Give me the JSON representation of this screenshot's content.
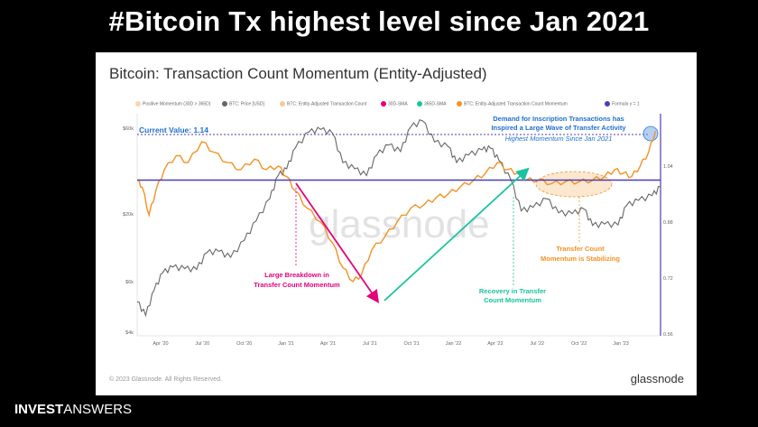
{
  "headline": "#Bitcoin Tx highest level since Jan 2021",
  "card_title": "Bitcoin: Transaction Count Momentum (Entity-Adjusted)",
  "legend": [
    {
      "label": "Positive Momentum (30D > 365D)",
      "color": "#f3d9b1"
    },
    {
      "label": "BTC: Price [USD]",
      "color": "#666666"
    },
    {
      "label": "BTC: Entity-Adjusted Transaction Count",
      "color": "#f6c99a"
    },
    {
      "label": "30D-SMA",
      "color": "#e3007b"
    },
    {
      "label": "365D-SMA",
      "color": "#19c3a0"
    },
    {
      "label": "BTC: Entity-Adjusted Transaction Count Momentum",
      "color": "#f39224"
    },
    {
      "label": "Formula y = 1",
      "color": "#4b3fb5"
    }
  ],
  "annotations": {
    "current_value": "Current Value: 1.14",
    "demand_line1": "Demand for Inscription Transactions has",
    "demand_line2": "Inspired a Large Wave of Transfer Activity",
    "demand_line3": "Highest Momentum Since Jan 2021",
    "breakdown_line1": "Large Breakdown in",
    "breakdown_line2": "Transfer Count Momentum",
    "recovery_line1": "Recovery in Transfer",
    "recovery_line2": "Count Momentum",
    "stabilizing_line1": "Transfer Count",
    "stabilizing_line2": "Momentum is Stabilizing"
  },
  "watermark": "glassnode",
  "copyright": "© 2023 Glassnode. All Rights Reserved.",
  "brand": "glassnode",
  "footer_bold": "INVEST",
  "footer_light": "ANSWERS",
  "colors": {
    "price": "#666666",
    "momentum": "#f39224",
    "baseline": "#4b3fb5",
    "breakdown": "#e3007b",
    "recovery": "#19c3a0",
    "demand_text": "#1f6fd0",
    "stabilizing_text": "#f39224"
  },
  "chart_data": {
    "type": "line",
    "title": "Bitcoin: Transaction Count Momentum (Entity-Adjusted)",
    "x_ticks": [
      "Apr '20",
      "Jul '20",
      "Oct '20",
      "Jan '21",
      "Apr '21",
      "Jul '21",
      "Oct '21",
      "Jan '22",
      "Apr '22",
      "Jul '22",
      "Oct '22",
      "Jan '23"
    ],
    "y_left_ticks": [
      "$60k",
      "$20k",
      "$6k",
      "$4k"
    ],
    "y_left_scale": "log",
    "y_right_ticks": [
      "1.04",
      "0.88",
      "0.72",
      "0.56"
    ],
    "y_right_range": [
      0.56,
      1.2
    ],
    "x_range": [
      2020.17,
      2023.25
    ],
    "series": [
      {
        "name": "BTC: Price [USD]",
        "axis": "left",
        "points": [
          [
            2020.17,
            6000
          ],
          [
            2020.22,
            5000
          ],
          [
            2020.27,
            7000
          ],
          [
            2020.32,
            8800
          ],
          [
            2020.38,
            9500
          ],
          [
            2020.45,
            9300
          ],
          [
            2020.52,
            9200
          ],
          [
            2020.58,
            11500
          ],
          [
            2020.65,
            11700
          ],
          [
            2020.72,
            10800
          ],
          [
            2020.8,
            13500
          ],
          [
            2020.87,
            17500
          ],
          [
            2020.95,
            23500
          ],
          [
            2021.0,
            32000
          ],
          [
            2021.05,
            35000
          ],
          [
            2021.1,
            46000
          ],
          [
            2021.18,
            57000
          ],
          [
            2021.25,
            59000
          ],
          [
            2021.32,
            56000
          ],
          [
            2021.38,
            38000
          ],
          [
            2021.45,
            35000
          ],
          [
            2021.52,
            32000
          ],
          [
            2021.58,
            42000
          ],
          [
            2021.65,
            48000
          ],
          [
            2021.72,
            44000
          ],
          [
            2021.78,
            61000
          ],
          [
            2021.85,
            66000
          ],
          [
            2021.92,
            50000
          ],
          [
            2022.0,
            47000
          ],
          [
            2022.05,
            38000
          ],
          [
            2022.12,
            42000
          ],
          [
            2022.2,
            45000
          ],
          [
            2022.25,
            46000
          ],
          [
            2022.3,
            39000
          ],
          [
            2022.37,
            30000
          ],
          [
            2022.43,
            20000
          ],
          [
            2022.5,
            21000
          ],
          [
            2022.58,
            23500
          ],
          [
            2022.65,
            19500
          ],
          [
            2022.73,
            19300
          ],
          [
            2022.8,
            20500
          ],
          [
            2022.85,
            16500
          ],
          [
            2022.92,
            16800
          ],
          [
            2023.0,
            16600
          ],
          [
            2023.05,
            21500
          ],
          [
            2023.12,
            23000
          ],
          [
            2023.2,
            24500
          ],
          [
            2023.25,
            27500
          ]
        ]
      },
      {
        "name": "BTC: Entity-Adjusted Transaction Count Momentum",
        "axis": "right",
        "points": [
          [
            2020.17,
            1.0
          ],
          [
            2020.2,
            0.98
          ],
          [
            2020.24,
            0.9
          ],
          [
            2020.28,
            0.97
          ],
          [
            2020.33,
            1.03
          ],
          [
            2020.4,
            1.07
          ],
          [
            2020.47,
            1.05
          ],
          [
            2020.55,
            1.11
          ],
          [
            2020.62,
            1.08
          ],
          [
            2020.7,
            1.05
          ],
          [
            2020.78,
            1.03
          ],
          [
            2020.86,
            1.06
          ],
          [
            2020.93,
            1.03
          ],
          [
            2021.0,
            1.04
          ],
          [
            2021.05,
            1.01
          ],
          [
            2021.1,
            0.97
          ],
          [
            2021.17,
            0.92
          ],
          [
            2021.25,
            0.88
          ],
          [
            2021.32,
            0.82
          ],
          [
            2021.38,
            0.75
          ],
          [
            2021.44,
            0.71
          ],
          [
            2021.49,
            0.73
          ],
          [
            2021.55,
            0.8
          ],
          [
            2021.63,
            0.84
          ],
          [
            2021.7,
            0.88
          ],
          [
            2021.78,
            0.92
          ],
          [
            2021.86,
            0.93
          ],
          [
            2021.93,
            0.95
          ],
          [
            2022.0,
            0.96
          ],
          [
            2022.07,
            0.98
          ],
          [
            2022.15,
            1.0
          ],
          [
            2022.22,
            1.02
          ],
          [
            2022.29,
            1.05
          ],
          [
            2022.35,
            1.03
          ],
          [
            2022.41,
            1.02
          ],
          [
            2022.46,
            1.0
          ],
          [
            2022.53,
            1.0
          ],
          [
            2022.61,
            0.99
          ],
          [
            2022.69,
            0.995
          ],
          [
            2022.77,
            0.995
          ],
          [
            2022.85,
            1.0
          ],
          [
            2022.92,
            1.01
          ],
          [
            2022.98,
            1.03
          ],
          [
            2023.03,
            1.02
          ],
          [
            2023.08,
            1.01
          ],
          [
            2023.13,
            1.04
          ],
          [
            2023.18,
            1.08
          ],
          [
            2023.22,
            1.14
          ]
        ]
      },
      {
        "name": "Formula y = 1",
        "axis": "right",
        "points": [
          [
            2020.17,
            1.0
          ],
          [
            2023.25,
            1.0
          ]
        ]
      }
    ],
    "current_value": 1.14
  }
}
